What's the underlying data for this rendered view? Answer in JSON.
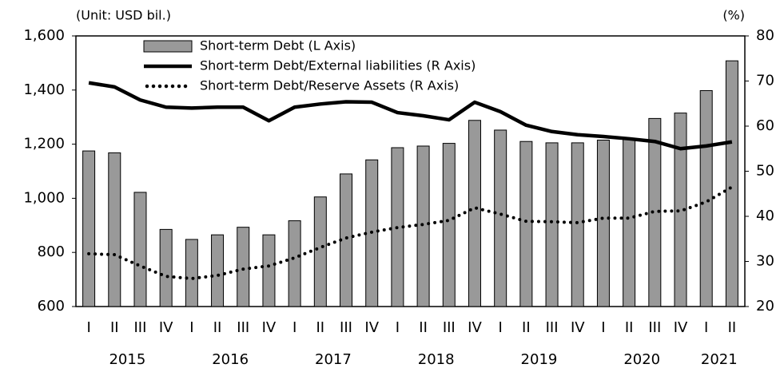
{
  "chart_data": {
    "type": "bar-line",
    "unit_left": "(Unit: USD bil.)",
    "unit_right": "(%)",
    "categories": [
      "I",
      "II",
      "III",
      "IV",
      "I",
      "II",
      "III",
      "IV",
      "I",
      "II",
      "III",
      "IV",
      "I",
      "II",
      "III",
      "IV",
      "I",
      "II",
      "III",
      "IV",
      "I",
      "II",
      "III",
      "IV",
      "I",
      "II"
    ],
    "years": [
      "2015",
      "2016",
      "2017",
      "2018",
      "2019",
      "2020",
      "2021"
    ],
    "series": [
      {
        "name": "Short-term Debt (L Axis)",
        "type": "bar",
        "color": "#999999",
        "axis": "y",
        "values": [
          1175,
          1168,
          1022,
          885,
          848,
          865,
          893,
          865,
          917,
          1005,
          1090,
          1142,
          1187,
          1193,
          1203,
          1288,
          1252,
          1210,
          1205,
          1205,
          1215,
          1220,
          1295,
          1315,
          1398,
          1508
        ]
      },
      {
        "name": "Short-term Debt/External liabilities (R Axis)",
        "type": "line",
        "color": "#000000",
        "axis": "y2",
        "style": "solid",
        "values": [
          69.6,
          68.7,
          65.8,
          64.2,
          64.0,
          64.2,
          64.2,
          61.2,
          64.2,
          64.9,
          65.4,
          65.3,
          63.0,
          62.3,
          61.4,
          65.3,
          63.2,
          60.2,
          58.8,
          58.1,
          57.7,
          57.2,
          56.6,
          55.0,
          55.6,
          56.5
        ]
      },
      {
        "name": "Short-term Debt/Reserve Assets (R Axis)",
        "type": "line",
        "color": "#000000",
        "axis": "y2",
        "style": "dotted",
        "values": [
          31.7,
          31.5,
          29.0,
          26.7,
          26.2,
          26.9,
          28.3,
          29.0,
          30.8,
          33.1,
          35.2,
          36.5,
          37.5,
          38.2,
          39.1,
          41.9,
          40.5,
          38.9,
          38.8,
          38.6,
          39.6,
          39.6,
          41.1,
          41.2,
          43.2,
          46.5
        ]
      }
    ],
    "ylim": [
      600,
      1600
    ],
    "yticks": [
      600,
      800,
      {
        "value": 1000,
        "label": "1,000"
      },
      {
        "value": 1200,
        "label": "1,200"
      },
      {
        "value": 1400,
        "label": "1,400"
      },
      {
        "value": 1600,
        "label": "1,600"
      }
    ],
    "y2lim": [
      20,
      80
    ],
    "y2ticks": [
      20,
      30,
      40,
      50,
      60,
      70,
      80
    ]
  }
}
